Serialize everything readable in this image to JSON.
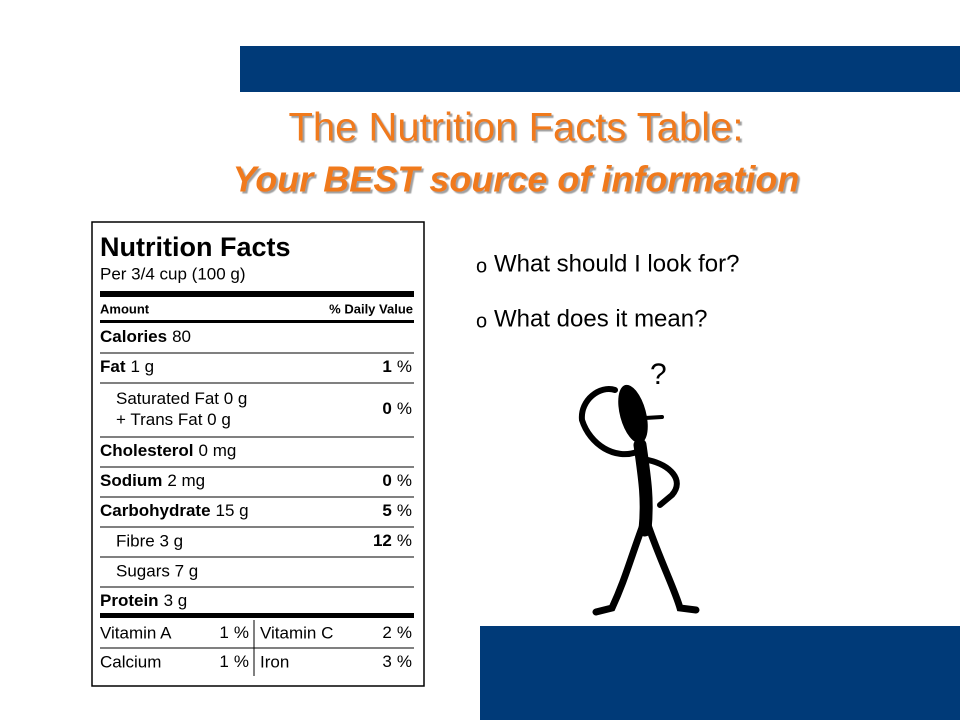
{
  "header": {
    "title": "The Nutrition Facts Table:",
    "subtitle": "Your BEST source of information"
  },
  "bullets": {
    "symbol": "o",
    "items": [
      "What should I look for?",
      "What does it mean?"
    ]
  },
  "figure": {
    "label": "?"
  },
  "label": {
    "title": "Nutrition Facts",
    "serving": "Per 3/4 cup (100 g)",
    "amount_header": "Amount",
    "dv_header": "% Daily Value",
    "rows": [
      {
        "name": "Calories",
        "amount": "80"
      },
      {
        "name": "Fat",
        "amount": "1 g",
        "dv": "1",
        "unit": "%"
      },
      {
        "lines": [
          "Saturated Fat 0 g",
          "+ Trans Fat 0 g"
        ],
        "dv": "0",
        "unit": "%"
      },
      {
        "name": "Cholesterol",
        "amount": "0 mg"
      },
      {
        "name": "Sodium",
        "amount": "2 mg",
        "dv": "0",
        "unit": "%"
      },
      {
        "name": "Carbohydrate",
        "amount": "15 g",
        "dv": "5",
        "unit": "%"
      },
      {
        "lines": [
          "Fibre 3 g"
        ],
        "dv": "12",
        "unit": "%"
      },
      {
        "lines": [
          "Sugars 7 g"
        ]
      },
      {
        "name": "Protein",
        "amount": "3 g"
      }
    ],
    "vitamins": [
      [
        {
          "name": "Vitamin A",
          "dv": "1",
          "unit": "%"
        },
        {
          "name": "Vitamin C",
          "dv": "2",
          "unit": "%"
        }
      ],
      [
        {
          "name": "Calcium",
          "dv": "1",
          "unit": "%"
        },
        {
          "name": "Iron",
          "dv": "3",
          "unit": "%"
        }
      ]
    ]
  }
}
